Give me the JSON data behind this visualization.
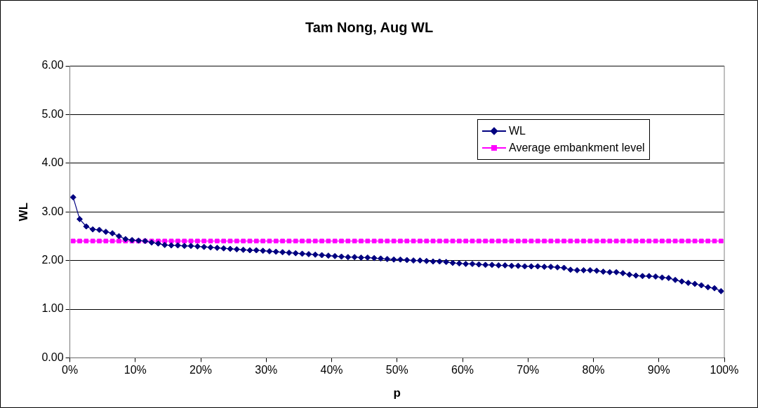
{
  "chart_data": {
    "type": "line",
    "title": "Tam Nong, Aug WL",
    "xlabel": "p",
    "ylabel": "WL",
    "x": [
      0.5,
      1.5,
      2.5,
      3.5,
      4.5,
      5.5,
      6.5,
      7.5,
      8.5,
      9.5,
      10.5,
      11.5,
      12.5,
      13.5,
      14.5,
      15.5,
      16.5,
      17.5,
      18.5,
      19.5,
      20.5,
      21.5,
      22.5,
      23.5,
      24.5,
      25.5,
      26.5,
      27.5,
      28.5,
      29.5,
      30.5,
      31.5,
      32.5,
      33.5,
      34.5,
      35.5,
      36.5,
      37.5,
      38.5,
      39.5,
      40.5,
      41.5,
      42.5,
      43.5,
      44.5,
      45.5,
      46.5,
      47.5,
      48.5,
      49.5,
      50.5,
      51.5,
      52.5,
      53.5,
      54.5,
      55.5,
      56.5,
      57.5,
      58.5,
      59.5,
      60.5,
      61.5,
      62.5,
      63.5,
      64.5,
      65.5,
      66.5,
      67.5,
      68.5,
      69.5,
      70.5,
      71.5,
      72.5,
      73.5,
      74.5,
      75.5,
      76.5,
      77.5,
      78.5,
      79.5,
      80.5,
      81.5,
      82.5,
      83.5,
      84.5,
      85.5,
      86.5,
      87.5,
      88.5,
      89.5,
      90.5,
      91.5,
      92.5,
      93.5,
      94.5,
      95.5,
      96.5,
      97.5,
      98.5,
      99.5
    ],
    "series": [
      {
        "name": "WL",
        "color": "#000080",
        "marker": "diamond",
        "values": [
          3.3,
          2.85,
          2.7,
          2.64,
          2.63,
          2.59,
          2.56,
          2.5,
          2.44,
          2.42,
          2.41,
          2.4,
          2.37,
          2.35,
          2.32,
          2.31,
          2.31,
          2.3,
          2.3,
          2.29,
          2.28,
          2.27,
          2.26,
          2.25,
          2.24,
          2.23,
          2.22,
          2.21,
          2.21,
          2.2,
          2.19,
          2.18,
          2.17,
          2.16,
          2.15,
          2.14,
          2.13,
          2.12,
          2.11,
          2.1,
          2.09,
          2.08,
          2.07,
          2.07,
          2.06,
          2.06,
          2.05,
          2.04,
          2.03,
          2.02,
          2.02,
          2.01,
          2.0,
          2.0,
          1.99,
          1.98,
          1.98,
          1.97,
          1.95,
          1.94,
          1.93,
          1.93,
          1.92,
          1.91,
          1.91,
          1.9,
          1.9,
          1.89,
          1.89,
          1.88,
          1.88,
          1.88,
          1.87,
          1.87,
          1.86,
          1.85,
          1.81,
          1.8,
          1.8,
          1.8,
          1.79,
          1.77,
          1.76,
          1.76,
          1.74,
          1.71,
          1.69,
          1.68,
          1.68,
          1.67,
          1.65,
          1.64,
          1.6,
          1.57,
          1.54,
          1.52,
          1.49,
          1.45,
          1.43,
          1.37
        ]
      },
      {
        "name": "Average embankment level",
        "color": "#ff00ff",
        "marker": "square",
        "values": [
          2.4,
          2.4,
          2.4,
          2.4,
          2.4,
          2.4,
          2.4,
          2.4,
          2.4,
          2.4,
          2.4,
          2.4,
          2.4,
          2.4,
          2.4,
          2.4,
          2.4,
          2.4,
          2.4,
          2.4,
          2.4,
          2.4,
          2.4,
          2.4,
          2.4,
          2.4,
          2.4,
          2.4,
          2.4,
          2.4,
          2.4,
          2.4,
          2.4,
          2.4,
          2.4,
          2.4,
          2.4,
          2.4,
          2.4,
          2.4,
          2.4,
          2.4,
          2.4,
          2.4,
          2.4,
          2.4,
          2.4,
          2.4,
          2.4,
          2.4,
          2.4,
          2.4,
          2.4,
          2.4,
          2.4,
          2.4,
          2.4,
          2.4,
          2.4,
          2.4,
          2.4,
          2.4,
          2.4,
          2.4,
          2.4,
          2.4,
          2.4,
          2.4,
          2.4,
          2.4,
          2.4,
          2.4,
          2.4,
          2.4,
          2.4,
          2.4,
          2.4,
          2.4,
          2.4,
          2.4,
          2.4,
          2.4,
          2.4,
          2.4,
          2.4,
          2.4,
          2.4,
          2.4,
          2.4,
          2.4,
          2.4,
          2.4,
          2.4,
          2.4,
          2.4,
          2.4,
          2.4,
          2.4,
          2.4,
          2.4
        ]
      }
    ],
    "xlim": [
      0,
      100
    ],
    "xticks": [
      {
        "value": 0,
        "label": "0%"
      },
      {
        "value": 10,
        "label": "10%"
      },
      {
        "value": 20,
        "label": "20%"
      },
      {
        "value": 30,
        "label": "30%"
      },
      {
        "value": 40,
        "label": "40%"
      },
      {
        "value": 50,
        "label": "50%"
      },
      {
        "value": 60,
        "label": "60%"
      },
      {
        "value": 70,
        "label": "70%"
      },
      {
        "value": 80,
        "label": "80%"
      },
      {
        "value": 90,
        "label": "90%"
      },
      {
        "value": 100,
        "label": "100%"
      }
    ],
    "ylim": [
      0,
      6
    ],
    "yticks": [
      {
        "value": 0,
        "label": "0.00"
      },
      {
        "value": 1,
        "label": "1.00"
      },
      {
        "value": 2,
        "label": "2.00"
      },
      {
        "value": 3,
        "label": "3.00"
      },
      {
        "value": 4,
        "label": "4.00"
      },
      {
        "value": 5,
        "label": "5.00"
      },
      {
        "value": 6,
        "label": "6.00"
      }
    ],
    "grid": "y",
    "legend": "top right",
    "line_style": "solid"
  }
}
